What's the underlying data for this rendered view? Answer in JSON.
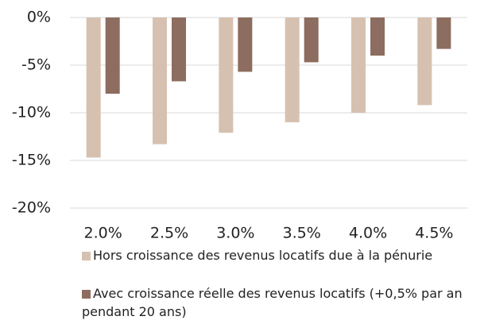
{
  "chart_data": {
    "type": "bar",
    "categories": [
      "2.0%",
      "2.5%",
      "3.0%",
      "3.5%",
      "4.0%",
      "4.5%"
    ],
    "series": [
      {
        "name": "Hors croissance des revenus locatifs due à la pénurie",
        "color": "#d6c1b0",
        "values": [
          -14.7,
          -13.3,
          -12.1,
          -11.0,
          -10.0,
          -9.2
        ]
      },
      {
        "name": "Avec croissance réelle des revenus locatifs (+0,5% par an pendant 20 ans)",
        "color": "#8c6d5f",
        "values": [
          -8.0,
          -6.7,
          -5.7,
          -4.7,
          -4.0,
          -3.3
        ]
      }
    ],
    "ylim": [
      -20,
      0
    ],
    "yticks": [
      {
        "value": 0,
        "label": "0%"
      },
      {
        "value": -5,
        "label": "-5%"
      },
      {
        "value": -10,
        "label": "-10%"
      },
      {
        "value": -15,
        "label": "-15%"
      },
      {
        "value": -20,
        "label": "-20%"
      }
    ],
    "grid": true
  }
}
